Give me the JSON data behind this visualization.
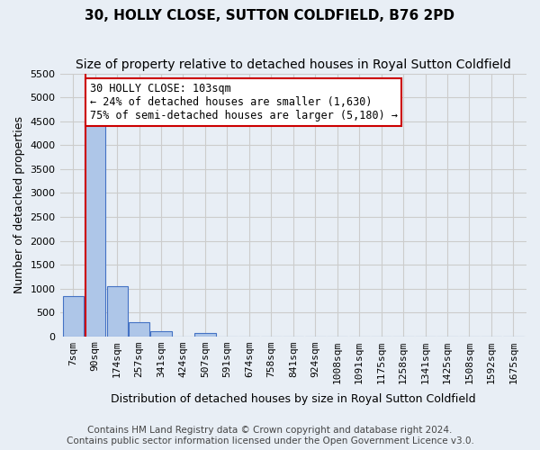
{
  "title": "30, HOLLY CLOSE, SUTTON COLDFIELD, B76 2PD",
  "subtitle": "Size of property relative to detached houses in Royal Sutton Coldfield",
  "xlabel": "Distribution of detached houses by size in Royal Sutton Coldfield",
  "ylabel": "Number of detached properties",
  "footer_line1": "Contains HM Land Registry data © Crown copyright and database right 2024.",
  "footer_line2": "Contains public sector information licensed under the Open Government Licence v3.0.",
  "bin_labels": [
    "7sqm",
    "90sqm",
    "174sqm",
    "257sqm",
    "341sqm",
    "424sqm",
    "507sqm",
    "591sqm",
    "674sqm",
    "758sqm",
    "841sqm",
    "924sqm",
    "1008sqm",
    "1091sqm",
    "1175sqm",
    "1258sqm",
    "1341sqm",
    "1425sqm",
    "1508sqm",
    "1592sqm",
    "1675sqm"
  ],
  "bar_heights": [
    850,
    4550,
    1050,
    300,
    100,
    0,
    80,
    0,
    0,
    0,
    0,
    0,
    0,
    0,
    0,
    0,
    0,
    0,
    0,
    0,
    0
  ],
  "bar_color": "#aec6e8",
  "bar_edge_color": "#4472c4",
  "property_line_label": "30 HOLLY CLOSE: 103sqm",
  "annotation_line1": "← 24% of detached houses are smaller (1,630)",
  "annotation_line2": "75% of semi-detached houses are larger (5,180) →",
  "annotation_box_color": "#ffffff",
  "annotation_box_edge_color": "#cc0000",
  "vline_color": "#cc0000",
  "vline_x": 0.55,
  "ylim": [
    0,
    5500
  ],
  "yticks": [
    0,
    500,
    1000,
    1500,
    2000,
    2500,
    3000,
    3500,
    4000,
    4500,
    5000,
    5500
  ],
  "grid_color": "#cccccc",
  "background_color": "#e8eef5",
  "title_fontsize": 11,
  "subtitle_fontsize": 10,
  "axis_label_fontsize": 9,
  "tick_fontsize": 8,
  "annotation_fontsize": 8.5,
  "footer_fontsize": 7.5
}
